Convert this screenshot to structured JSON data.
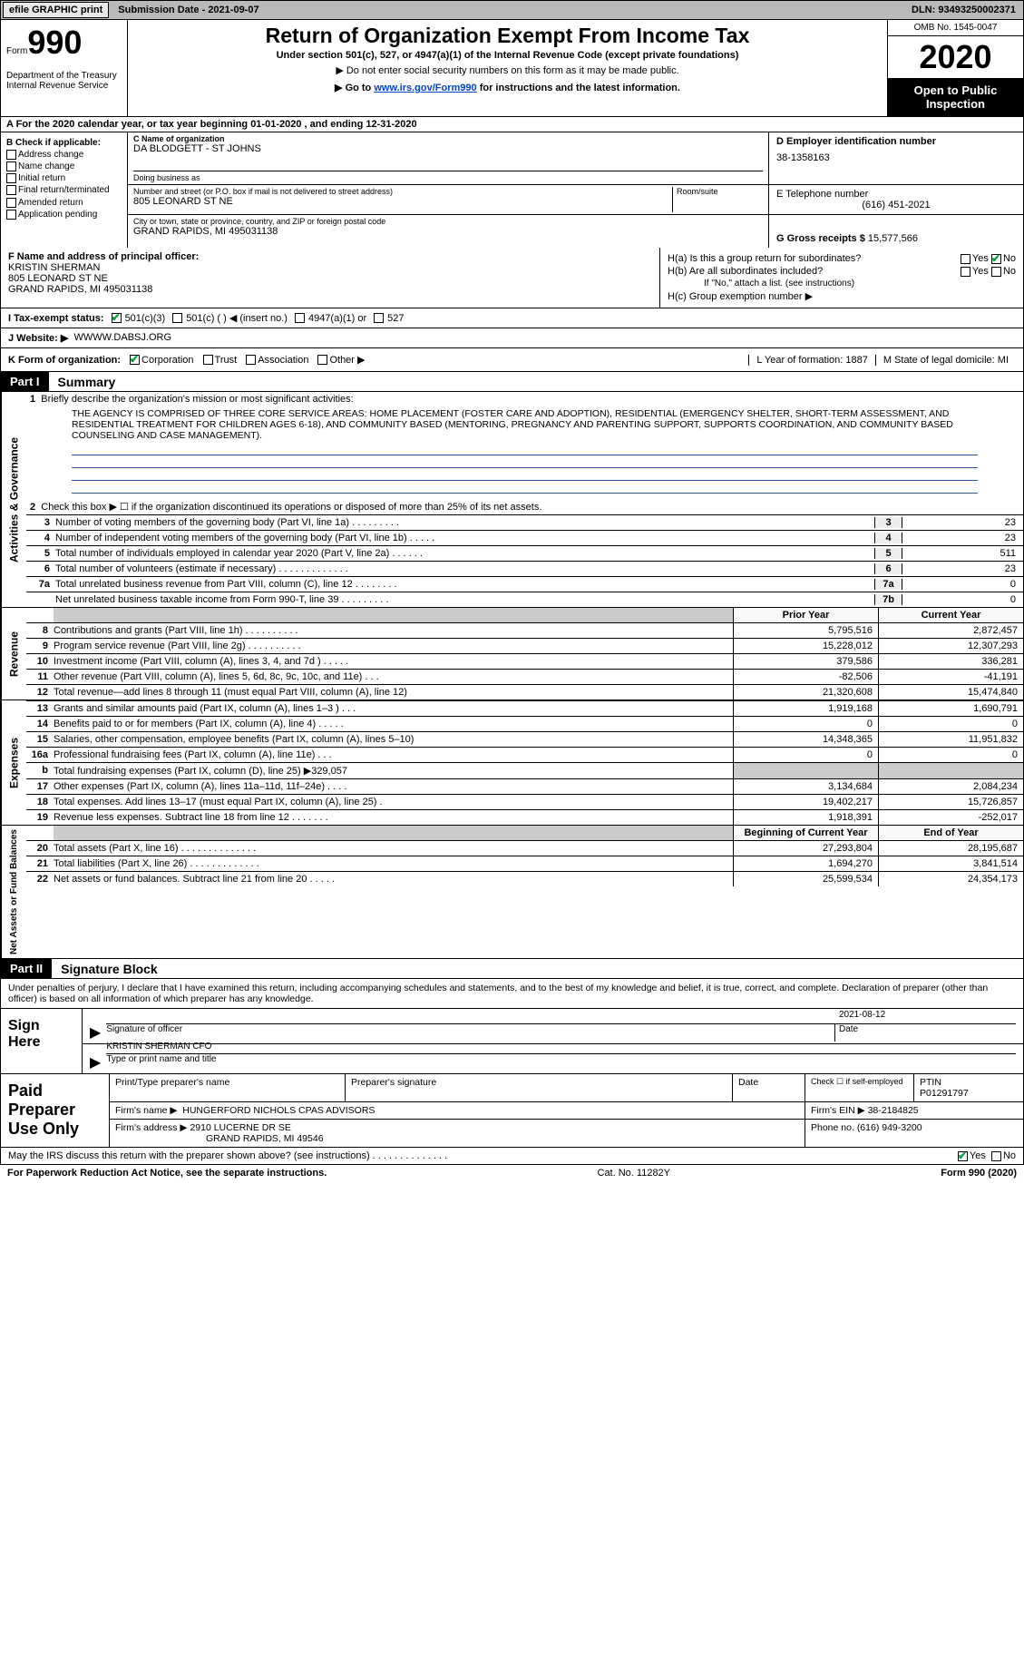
{
  "topbar": {
    "efile": "efile GRAPHIC print",
    "submission": "Submission Date - 2021-09-07",
    "dln": "DLN: 93493250002371"
  },
  "header": {
    "form_label": "Form",
    "form_num": "990",
    "dept": "Department of the Treasury\nInternal Revenue Service",
    "title": "Return of Organization Exempt From Income Tax",
    "sub1": "Under section 501(c), 527, or 4947(a)(1) of the Internal Revenue Code (except private foundations)",
    "sub2": "▶ Do not enter social security numbers on this form as it may be made public.",
    "sub3_pre": "▶ Go to ",
    "sub3_link": "www.irs.gov/Form990",
    "sub3_post": " for instructions and the latest information.",
    "omb": "OMB No. 1545-0047",
    "year": "2020",
    "open": "Open to Public Inspection"
  },
  "row_a": "A For the 2020 calendar year, or tax year beginning 01-01-2020    , and ending 12-31-2020",
  "section_b": {
    "label": "B Check if applicable:",
    "opts": [
      "Address change",
      "Name change",
      "Initial return",
      "Final return/terminated",
      "Amended return",
      "Application pending"
    ]
  },
  "section_c": {
    "name_label": "C Name of organization",
    "name": "DA BLODGETT - ST JOHNS",
    "dba_label": "Doing business as",
    "addr_label": "Number and street (or P.O. box if mail is not delivered to street address)",
    "addr": "805 LEONARD ST NE",
    "room_label": "Room/suite",
    "city_label": "City or town, state or province, country, and ZIP or foreign postal code",
    "city": "GRAND RAPIDS, MI  495031138"
  },
  "section_d": {
    "ein_label": "D Employer identification number",
    "ein": "38-1358163",
    "phone_label": "E Telephone number",
    "phone": "(616) 451-2021",
    "gross_label": "G Gross receipts $ ",
    "gross": "15,577,566"
  },
  "section_f": {
    "label": "F Name and address of principal officer:",
    "name": "KRISTIN SHERMAN",
    "addr1": "805 LEONARD ST NE",
    "addr2": "GRAND RAPIDS, MI  495031138"
  },
  "section_h": {
    "ha": "H(a)  Is this a group return for subordinates?",
    "hb": "H(b)  Are all subordinates included?",
    "hb_note": "If \"No,\" attach a list. (see instructions)",
    "hc": "H(c)  Group exemption number ▶"
  },
  "row_i": {
    "label": "I   Tax-exempt status:",
    "o1": "501(c)(3)",
    "o2": "501(c) (   ) ◀ (insert no.)",
    "o3": "4947(a)(1) or",
    "o4": "527"
  },
  "row_j": {
    "label": "J   Website: ▶",
    "val": "WWWW.DABSJ.ORG"
  },
  "row_k": {
    "label": "K Form of organization:",
    "o1": "Corporation",
    "o2": "Trust",
    "o3": "Association",
    "o4": "Other ▶",
    "l": "L Year of formation: 1887",
    "m": "M State of legal domicile: MI"
  },
  "part1": {
    "hdr": "Part I",
    "title": "Summary"
  },
  "gov": {
    "tab": "Activities & Governance",
    "l1_label": "Briefly describe the organization's mission or most significant activities:",
    "l1": "THE AGENCY IS COMPRISED OF THREE CORE SERVICE AREAS: HOME PLACEMENT (FOSTER CARE AND ADOPTION), RESIDENTIAL (EMERGENCY SHELTER, SHORT-TERM ASSESSMENT, AND RESIDENTIAL TREATMENT FOR CHILDREN AGES 6-18), AND COMMUNITY BASED (MENTORING, PREGNANCY AND PARENTING SUPPORT, SUPPORTS COORDINATION, AND COMMUNITY BASED COUNSELING AND CASE MANAGEMENT).",
    "l2": "Check this box ▶ ☐  if the organization discontinued its operations or disposed of more than 25% of its net assets.",
    "rows": [
      {
        "n": "3",
        "t": "Number of voting members of the governing body (Part VI, line 1a)   .    .    .    .    .    .    .    .    .",
        "b": "3",
        "v": "23"
      },
      {
        "n": "4",
        "t": "Number of independent voting members of the governing body (Part VI, line 1b)    .    .    .    .    .",
        "b": "4",
        "v": "23"
      },
      {
        "n": "5",
        "t": "Total number of individuals employed in calendar year 2020 (Part V, line 2a)    .    .    .    .    .    .",
        "b": "5",
        "v": "511"
      },
      {
        "n": "6",
        "t": "Total number of volunteers (estimate if necessary)    .    .    .    .    .    .    .    .    .    .    .    .    .",
        "b": "6",
        "v": "23"
      },
      {
        "n": "7a",
        "t": "Total unrelated business revenue from Part VIII, column (C), line 12    .    .    .    .    .    .    .    .",
        "b": "7a",
        "v": "0"
      },
      {
        "n": "",
        "t": "Net unrelated business taxable income from Form 990-T, line 39    .    .    .    .    .    .    .    .    .",
        "b": "7b",
        "v": "0"
      }
    ]
  },
  "rev": {
    "tab": "Revenue",
    "hdr_prior": "Prior Year",
    "hdr_curr": "Current Year",
    "rows": [
      {
        "n": "8",
        "t": "Contributions and grants (Part VIII, line 1h)   .    .    .    .    .    .    .    .    .    .",
        "c1": "5,795,516",
        "c2": "2,872,457"
      },
      {
        "n": "9",
        "t": "Program service revenue (Part VIII, line 2g)   .    .    .    .    .    .    .    .    .    .",
        "c1": "15,228,012",
        "c2": "12,307,293"
      },
      {
        "n": "10",
        "t": "Investment income (Part VIII, column (A), lines 3, 4, and 7d )   .    .    .    .    .",
        "c1": "379,586",
        "c2": "336,281"
      },
      {
        "n": "11",
        "t": "Other revenue (Part VIII, column (A), lines 5, 6d, 8c, 9c, 10c, and 11e)   .    .    .",
        "c1": "-82,506",
        "c2": "-41,191"
      },
      {
        "n": "12",
        "t": "Total revenue—add lines 8 through 11 (must equal Part VIII, column (A), line 12)",
        "c1": "21,320,608",
        "c2": "15,474,840"
      }
    ]
  },
  "exp": {
    "tab": "Expenses",
    "rows": [
      {
        "n": "13",
        "t": "Grants and similar amounts paid (Part IX, column (A), lines 1–3 )   .    .    .",
        "c1": "1,919,168",
        "c2": "1,690,791"
      },
      {
        "n": "14",
        "t": "Benefits paid to or for members (Part IX, column (A), line 4)   .    .    .    .    .",
        "c1": "0",
        "c2": "0"
      },
      {
        "n": "15",
        "t": "Salaries, other compensation, employee benefits (Part IX, column (A), lines 5–10)",
        "c1": "14,348,365",
        "c2": "11,951,832"
      },
      {
        "n": "16a",
        "t": "Professional fundraising fees (Part IX, column (A), line 11e)   .    .    .",
        "c1": "0",
        "c2": "0"
      },
      {
        "n": "b",
        "t": "Total fundraising expenses (Part IX, column (D), line 25) ▶329,057",
        "c1": "",
        "c2": "",
        "grey": true
      },
      {
        "n": "17",
        "t": "Other expenses (Part IX, column (A), lines 11a–11d, 11f–24e)   .    .    .    .",
        "c1": "3,134,684",
        "c2": "2,084,234"
      },
      {
        "n": "18",
        "t": "Total expenses. Add lines 13–17 (must equal Part IX, column (A), line 25)   .",
        "c1": "19,402,217",
        "c2": "15,726,857"
      },
      {
        "n": "19",
        "t": "Revenue less expenses. Subtract line 18 from line 12   .    .    .    .    .    .    .",
        "c1": "1,918,391",
        "c2": "-252,017"
      }
    ]
  },
  "net": {
    "tab": "Net Assets or Fund Balances",
    "hdr_beg": "Beginning of Current Year",
    "hdr_end": "End of Year",
    "rows": [
      {
        "n": "20",
        "t": "Total assets (Part X, line 16)   .    .    .    .    .    .    .    .    .    .    .    .    .    .",
        "c1": "27,293,804",
        "c2": "28,195,687"
      },
      {
        "n": "21",
        "t": "Total liabilities (Part X, line 26)   .    .    .    .    .    .    .    .    .    .    .    .    .",
        "c1": "1,694,270",
        "c2": "3,841,514"
      },
      {
        "n": "22",
        "t": "Net assets or fund balances. Subtract line 21 from line 20   .    .    .    .    .",
        "c1": "25,599,534",
        "c2": "24,354,173"
      }
    ]
  },
  "part2": {
    "hdr": "Part II",
    "title": "Signature Block",
    "intro": "Under penalties of perjury, I declare that I have examined this return, including accompanying schedules and statements, and to the best of my knowledge and belief, it is true, correct, and complete. Declaration of preparer (other than officer) is based on all information of which preparer has any knowledge."
  },
  "sign": {
    "label": "Sign Here",
    "sig_of": "Signature of officer",
    "date": "2021-08-12",
    "date_lbl": "Date",
    "name": "KRISTIN SHERMAN  CFO",
    "name_lbl": "Type or print name and title"
  },
  "prep": {
    "label": "Paid Preparer Use Only",
    "h1": "Print/Type preparer's name",
    "h2": "Preparer's signature",
    "h3": "Date",
    "h4_pre": "Check ☐ if self-employed",
    "h5": "PTIN",
    "ptin": "P01291797",
    "firm_lbl": "Firm's name    ▶",
    "firm": "HUNGERFORD NICHOLS CPAS ADVISORS",
    "ein_lbl": "Firm's EIN ▶",
    "ein": "38-2184825",
    "addr_lbl": "Firm's address ▶",
    "addr1": "2910 LUCERNE DR SE",
    "addr2": "GRAND RAPIDS, MI  49546",
    "phone_lbl": "Phone no.",
    "phone": "(616) 949-3200"
  },
  "discuss": "May the IRS discuss this return with the preparer shown above? (see instructions)    .    .    .    .    .    .    .    .    .    .    .    .    .    .",
  "bottom": {
    "left": "For Paperwork Reduction Act Notice, see the separate instructions.",
    "mid": "Cat. No. 11282Y",
    "right": "Form 990 (2020)"
  }
}
